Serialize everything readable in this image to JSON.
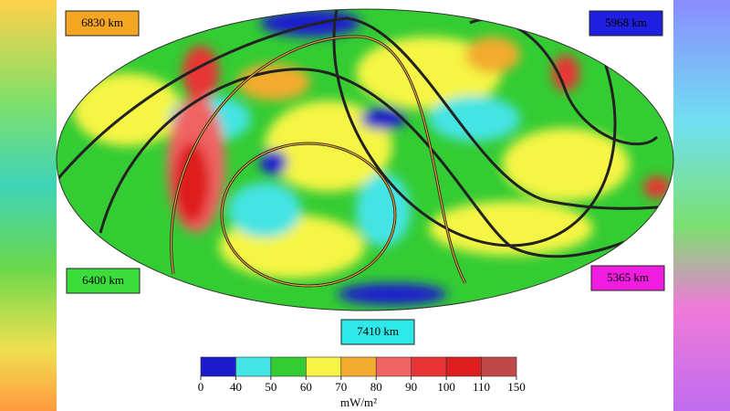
{
  "labels": [
    {
      "text": "6830 km",
      "color": "#f5a623"
    },
    {
      "text": "5968 km",
      "color": "#1f1fe0"
    },
    {
      "text": "6400 km",
      "color": "#3ddc3d"
    },
    {
      "text": "5365 km",
      "color": "#f01ce0"
    },
    {
      "text": "7410 km",
      "color": "#2ee8e8"
    }
  ],
  "legend": {
    "ticks": [
      0,
      40,
      50,
      60,
      70,
      80,
      90,
      100,
      110,
      150
    ],
    "colors": [
      "#1c1ccc",
      "#44e4e4",
      "#33cc33",
      "#f6f545",
      "#f2ab2e",
      "#f06464",
      "#e83434",
      "#de1e1e",
      "#c04848"
    ],
    "unit": "mW/m²"
  }
}
